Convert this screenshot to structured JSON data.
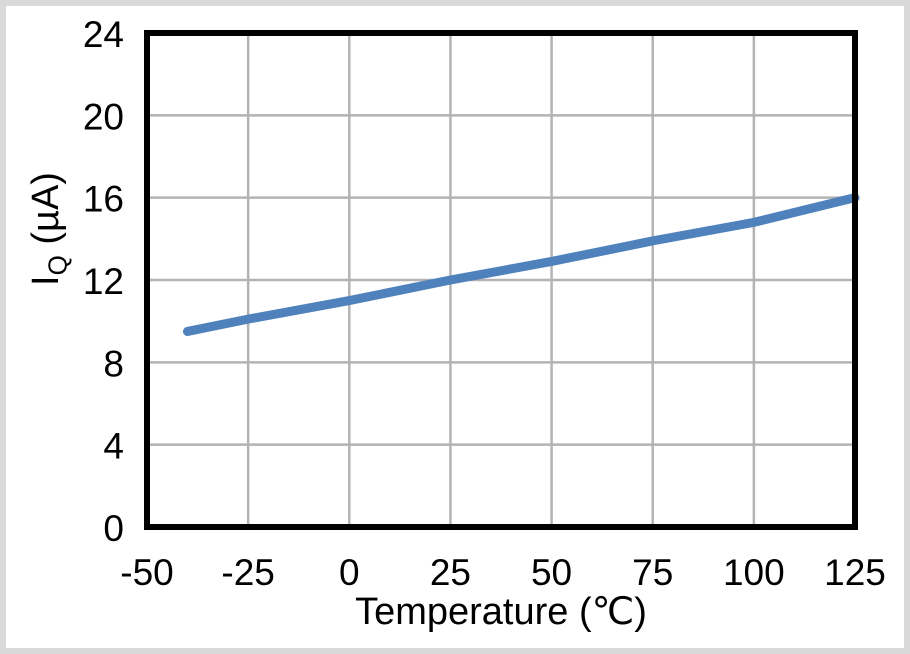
{
  "chart_data": {
    "type": "line",
    "title": "",
    "xlabel": "Temperature (℃)",
    "ylabel": "IQ (µA)",
    "ylabel_parts": {
      "base": "I",
      "sub": "Q",
      "unit": " (µA)"
    },
    "x": [
      -40,
      -25,
      0,
      25,
      50,
      75,
      100,
      125
    ],
    "series": [
      {
        "name": "IQ",
        "values": [
          9.5,
          10.1,
          11.0,
          12.0,
          12.9,
          13.9,
          14.8,
          16.0
        ]
      }
    ],
    "xlim": [
      -50,
      125
    ],
    "ylim": [
      0,
      24
    ],
    "x_ticks": [
      -50,
      -25,
      0,
      25,
      50,
      75,
      100,
      125
    ],
    "y_ticks": [
      0,
      4,
      8,
      12,
      16,
      20,
      24
    ],
    "grid": true,
    "legend": "none",
    "colors": {
      "line": "#4F81BD",
      "grid": "#B3B3B3",
      "axis": "#000000",
      "text": "#000000",
      "frame_border": "#D9D9D9",
      "background": "#FFFFFF"
    }
  }
}
